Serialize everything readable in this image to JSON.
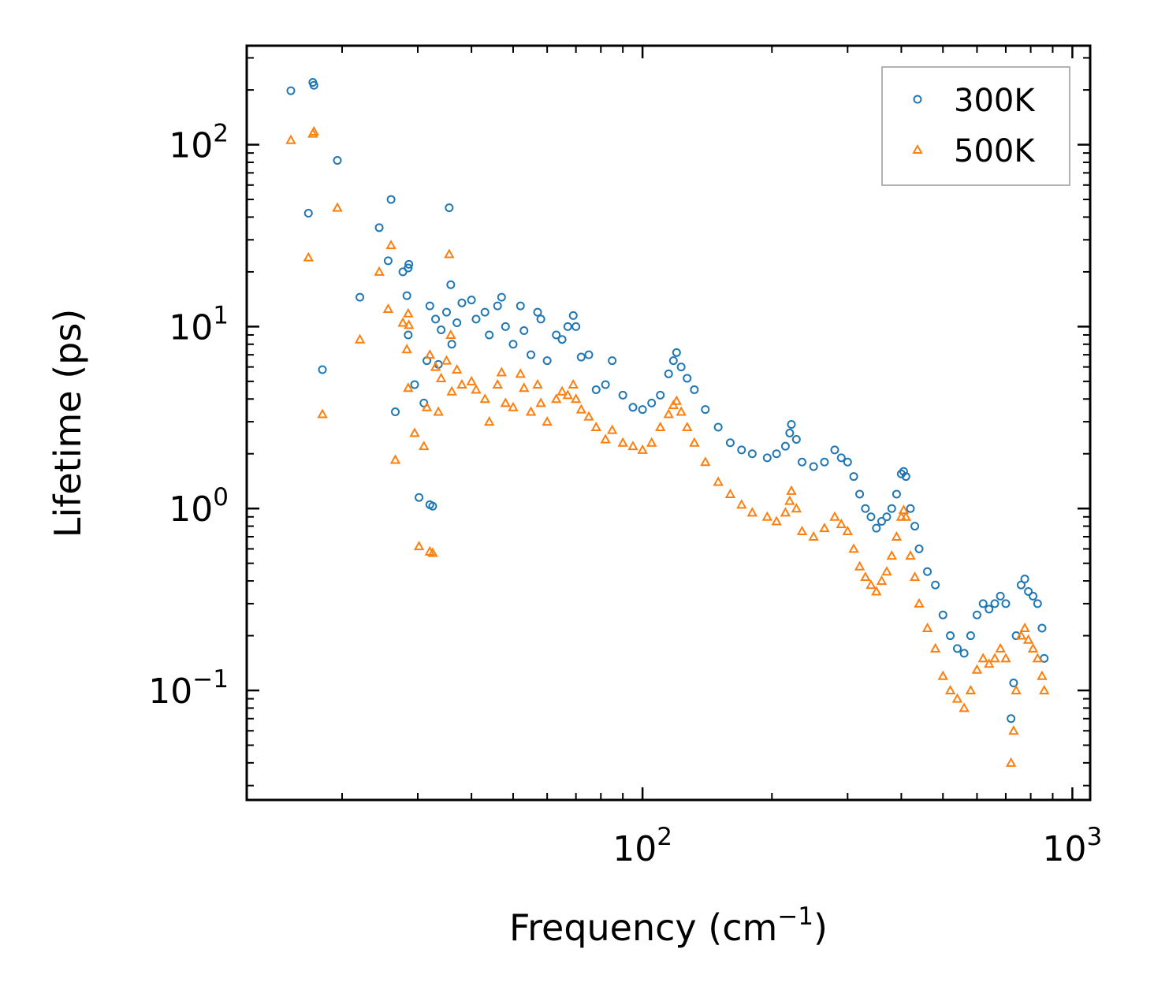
{
  "chart_data": {
    "type": "scatter",
    "title": "",
    "xlabel": "Frequency (cm",
    "xlabel_sup": "−1",
    "xlabel_tail": ")",
    "ylabel": "Lifetime (ps)",
    "xscale": "log",
    "yscale": "log",
    "xlim": [
      12,
      1100
    ],
    "ylim": [
      0.025,
      350
    ],
    "x_ticks": [
      {
        "base": "10",
        "exp": "2",
        "value": 100
      },
      {
        "base": "10",
        "exp": "3",
        "value": 1000
      }
    ],
    "y_ticks": [
      {
        "base": "10",
        "exp": "−1",
        "value": 0.1
      },
      {
        "base": "10",
        "exp": "0",
        "value": 1
      },
      {
        "base": "10",
        "exp": "1",
        "value": 10
      },
      {
        "base": "10",
        "exp": "2",
        "value": 100
      }
    ],
    "legend_position": "top-right",
    "series": [
      {
        "name": "300K",
        "marker": "circle",
        "color": "#1f77b4",
        "points": [
          [
            15.2,
            198
          ],
          [
            17.1,
            220
          ],
          [
            17.2,
            212
          ],
          [
            16.7,
            42
          ],
          [
            18.0,
            5.8
          ],
          [
            19.5,
            82
          ],
          [
            22,
            14.5
          ],
          [
            24.4,
            35
          ],
          [
            25.6,
            23
          ],
          [
            26,
            50
          ],
          [
            26.6,
            3.4
          ],
          [
            27.7,
            20
          ],
          [
            28.5,
            21
          ],
          [
            28.6,
            22
          ],
          [
            28.3,
            14.8
          ],
          [
            28.5,
            9
          ],
          [
            29.5,
            4.8
          ],
          [
            30.2,
            1.15
          ],
          [
            31,
            3.8
          ],
          [
            31.5,
            6.5
          ],
          [
            32,
            13
          ],
          [
            32,
            1.05
          ],
          [
            32.5,
            1.03
          ],
          [
            33,
            11
          ],
          [
            33.5,
            6.2
          ],
          [
            34,
            9.6
          ],
          [
            35,
            12
          ],
          [
            35.5,
            45
          ],
          [
            35.8,
            17
          ],
          [
            36,
            8
          ],
          [
            37,
            10.5
          ],
          [
            38,
            13.5
          ],
          [
            40,
            14
          ],
          [
            41,
            11
          ],
          [
            43,
            12
          ],
          [
            44,
            9
          ],
          [
            46,
            13
          ],
          [
            47,
            14.5
          ],
          [
            48,
            10
          ],
          [
            50,
            8
          ],
          [
            52,
            13
          ],
          [
            53,
            9.5
          ],
          [
            55,
            7
          ],
          [
            57,
            12
          ],
          [
            58,
            11
          ],
          [
            60,
            6.5
          ],
          [
            63,
            9
          ],
          [
            65,
            8.5
          ],
          [
            67,
            10
          ],
          [
            69,
            11.5
          ],
          [
            70,
            10
          ],
          [
            72,
            6.8
          ],
          [
            75,
            7
          ],
          [
            78,
            4.5
          ],
          [
            82,
            4.8
          ],
          [
            85,
            6.5
          ],
          [
            90,
            4.2
          ],
          [
            95,
            3.6
          ],
          [
            100,
            3.5
          ],
          [
            105,
            3.8
          ],
          [
            110,
            4.2
          ],
          [
            115,
            5.5
          ],
          [
            118,
            6.5
          ],
          [
            120,
            7.2
          ],
          [
            123,
            6
          ],
          [
            127,
            5.2
          ],
          [
            132,
            4.5
          ],
          [
            140,
            3.5
          ],
          [
            150,
            2.8
          ],
          [
            160,
            2.3
          ],
          [
            170,
            2.1
          ],
          [
            180,
            2
          ],
          [
            195,
            1.9
          ],
          [
            205,
            2
          ],
          [
            215,
            2.2
          ],
          [
            220,
            2.6
          ],
          [
            222,
            2.9
          ],
          [
            228,
            2.4
          ],
          [
            235,
            1.8
          ],
          [
            250,
            1.7
          ],
          [
            265,
            1.8
          ],
          [
            280,
            2.1
          ],
          [
            290,
            1.9
          ],
          [
            300,
            1.8
          ],
          [
            310,
            1.5
          ],
          [
            320,
            1.2
          ],
          [
            330,
            1.0
          ],
          [
            340,
            0.9
          ],
          [
            350,
            0.78
          ],
          [
            360,
            0.85
          ],
          [
            370,
            0.9
          ],
          [
            380,
            1.0
          ],
          [
            390,
            1.2
          ],
          [
            400,
            1.55
          ],
          [
            405,
            1.6
          ],
          [
            410,
            1.5
          ],
          [
            420,
            1.0
          ],
          [
            430,
            0.8
          ],
          [
            440,
            0.6
          ],
          [
            460,
            0.45
          ],
          [
            480,
            0.38
          ],
          [
            500,
            0.26
          ],
          [
            520,
            0.2
          ],
          [
            540,
            0.17
          ],
          [
            560,
            0.16
          ],
          [
            580,
            0.2
          ],
          [
            600,
            0.26
          ],
          [
            620,
            0.3
          ],
          [
            640,
            0.28
          ],
          [
            660,
            0.3
          ],
          [
            680,
            0.33
          ],
          [
            700,
            0.3
          ],
          [
            720,
            0.07
          ],
          [
            730,
            0.11
          ],
          [
            740,
            0.2
          ],
          [
            760,
            0.38
          ],
          [
            775,
            0.41
          ],
          [
            790,
            0.35
          ],
          [
            810,
            0.33
          ],
          [
            830,
            0.3
          ],
          [
            850,
            0.22
          ],
          [
            860,
            0.15
          ]
        ]
      },
      {
        "name": "500K",
        "marker": "triangle",
        "color": "#ff7f0e",
        "points": [
          [
            15.2,
            106
          ],
          [
            17.1,
            115
          ],
          [
            17.2,
            118
          ],
          [
            16.7,
            24
          ],
          [
            18.0,
            3.3
          ],
          [
            19.5,
            45
          ],
          [
            22,
            8.5
          ],
          [
            24.4,
            20
          ],
          [
            25.6,
            12.5
          ],
          [
            26,
            28
          ],
          [
            26.6,
            1.85
          ],
          [
            27.7,
            10.5
          ],
          [
            28.5,
            11.8
          ],
          [
            28.6,
            10.2
          ],
          [
            28.3,
            7.5
          ],
          [
            28.5,
            4.6
          ],
          [
            29.5,
            2.6
          ],
          [
            30.2,
            0.62
          ],
          [
            31,
            2.2
          ],
          [
            31.5,
            3.6
          ],
          [
            32,
            7
          ],
          [
            32,
            0.58
          ],
          [
            32.5,
            0.57
          ],
          [
            33,
            6
          ],
          [
            33.5,
            3.4
          ],
          [
            34,
            5.2
          ],
          [
            35,
            6.5
          ],
          [
            35.5,
            25
          ],
          [
            35.8,
            9
          ],
          [
            36,
            4.4
          ],
          [
            37,
            5.8
          ],
          [
            38,
            4.8
          ],
          [
            40,
            5
          ],
          [
            41,
            4.5
          ],
          [
            43,
            4
          ],
          [
            44,
            3
          ],
          [
            46,
            4.8
          ],
          [
            47,
            5.6
          ],
          [
            48,
            3.8
          ],
          [
            50,
            3.6
          ],
          [
            52,
            5.5
          ],
          [
            53,
            4.6
          ],
          [
            55,
            3.4
          ],
          [
            57,
            4.8
          ],
          [
            58,
            3.8
          ],
          [
            60,
            3
          ],
          [
            63,
            4
          ],
          [
            65,
            4.4
          ],
          [
            67,
            4.2
          ],
          [
            69,
            4.8
          ],
          [
            70,
            4
          ],
          [
            72,
            3.5
          ],
          [
            75,
            3.2
          ],
          [
            78,
            2.8
          ],
          [
            82,
            2.4
          ],
          [
            85,
            2.7
          ],
          [
            90,
            2.3
          ],
          [
            95,
            2.2
          ],
          [
            100,
            2.1
          ],
          [
            105,
            2.3
          ],
          [
            110,
            2.8
          ],
          [
            115,
            3.3
          ],
          [
            118,
            3.7
          ],
          [
            120,
            3.9
          ],
          [
            123,
            3.4
          ],
          [
            127,
            2.8
          ],
          [
            132,
            2.3
          ],
          [
            140,
            1.8
          ],
          [
            150,
            1.4
          ],
          [
            160,
            1.2
          ],
          [
            170,
            1.05
          ],
          [
            180,
            0.95
          ],
          [
            195,
            0.9
          ],
          [
            205,
            0.85
          ],
          [
            215,
            0.95
          ],
          [
            220,
            1.1
          ],
          [
            222,
            1.25
          ],
          [
            228,
            1.0
          ],
          [
            235,
            0.75
          ],
          [
            250,
            0.7
          ],
          [
            265,
            0.78
          ],
          [
            280,
            0.9
          ],
          [
            290,
            0.82
          ],
          [
            300,
            0.75
          ],
          [
            310,
            0.6
          ],
          [
            320,
            0.48
          ],
          [
            330,
            0.42
          ],
          [
            340,
            0.38
          ],
          [
            350,
            0.35
          ],
          [
            360,
            0.4
          ],
          [
            370,
            0.45
          ],
          [
            380,
            0.55
          ],
          [
            390,
            0.7
          ],
          [
            400,
            0.9
          ],
          [
            405,
            0.98
          ],
          [
            410,
            0.9
          ],
          [
            420,
            0.55
          ],
          [
            430,
            0.42
          ],
          [
            440,
            0.3
          ],
          [
            460,
            0.22
          ],
          [
            480,
            0.17
          ],
          [
            500,
            0.12
          ],
          [
            520,
            0.1
          ],
          [
            540,
            0.09
          ],
          [
            560,
            0.08
          ],
          [
            580,
            0.1
          ],
          [
            600,
            0.13
          ],
          [
            620,
            0.15
          ],
          [
            640,
            0.14
          ],
          [
            660,
            0.15
          ],
          [
            680,
            0.17
          ],
          [
            700,
            0.15
          ],
          [
            720,
            0.04
          ],
          [
            730,
            0.06
          ],
          [
            740,
            0.1
          ],
          [
            760,
            0.2
          ],
          [
            775,
            0.22
          ],
          [
            790,
            0.19
          ],
          [
            810,
            0.17
          ],
          [
            830,
            0.15
          ],
          [
            850,
            0.12
          ],
          [
            860,
            0.1
          ]
        ]
      }
    ]
  }
}
